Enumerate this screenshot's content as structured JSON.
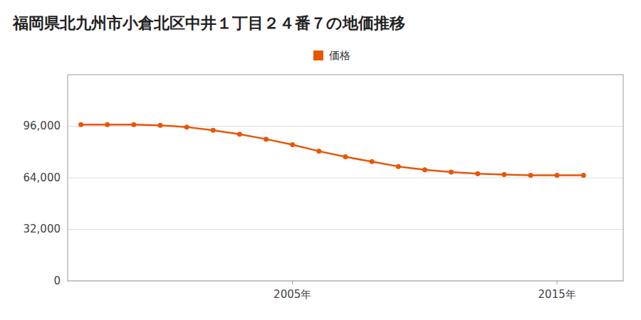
{
  "chart_data": {
    "type": "line",
    "title": "福岡県北九州市小倉北区中井１丁目２４番７の地価推移",
    "x": [
      1997,
      1998,
      1999,
      2000,
      2001,
      2002,
      2003,
      2004,
      2005,
      2006,
      2007,
      2008,
      2009,
      2010,
      2011,
      2012,
      2013,
      2014,
      2015,
      2016
    ],
    "series": [
      {
        "name": "価格",
        "color": "#e8560a",
        "marker": "circle",
        "values": [
          97000,
          97000,
          97000,
          96500,
          95500,
          93500,
          91000,
          88000,
          84500,
          80500,
          77000,
          74000,
          71000,
          69000,
          67500,
          66500,
          66000,
          65500,
          65500,
          65500
        ]
      }
    ],
    "xlim": [
      1996.5,
      2017.5
    ],
    "xticks": [
      {
        "value": 2005,
        "label": "2005年"
      },
      {
        "value": 2015,
        "label": "2015年"
      }
    ],
    "ylim": [
      0,
      128000
    ],
    "yticks": [
      0,
      {
        "value": 32000,
        "label": "32,000"
      },
      {
        "value": 64000,
        "label": "64,000"
      },
      {
        "value": 96000,
        "label": "96,000"
      }
    ],
    "grid": true,
    "legend": "top"
  }
}
